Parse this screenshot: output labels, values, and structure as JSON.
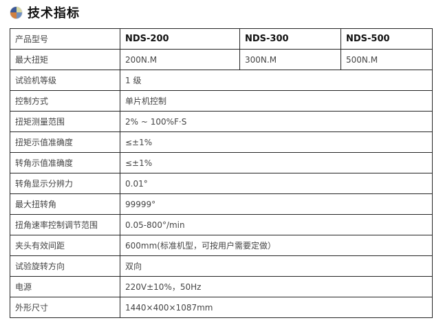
{
  "title": "技术指标",
  "icon_colors": [
    "#3b5998",
    "#d8d8a0",
    "#d08040",
    "#7090c0"
  ],
  "header": {
    "label": "产品型号",
    "models": [
      "NDS-200",
      "NDS-300",
      "NDS-500"
    ]
  },
  "torque_row": {
    "label": "最大扭矩",
    "values": [
      "200N.M",
      "300N.M",
      "500N.M"
    ]
  },
  "rows": [
    {
      "label": "试验机等级",
      "value": "1 级"
    },
    {
      "label": "控制方式",
      "value": "单片机控制"
    },
    {
      "label": "扭矩测量范围",
      "value": "2% ~ 100%F·S"
    },
    {
      "label": "扭矩示值准确度",
      "value": "≤±1%"
    },
    {
      "label": "转角示值准确度",
      "value": "≤±1%"
    },
    {
      "label": "转角显示分辨力",
      "value": "0.01°"
    },
    {
      "label": "最大扭转角",
      "value": "99999°"
    },
    {
      "label": "扭角速率控制调节范围",
      "value": "0.05-800°/min"
    },
    {
      "label": "夹头有效间距",
      "value": "600mm(标准机型，可按用户需要定做）"
    },
    {
      "label": "试验旋转方向",
      "value": "双向"
    },
    {
      "label": "电源",
      "value": "220V±10%，50Hz"
    },
    {
      "label": "外形尺寸",
      "value": "1440×400×1087mm"
    }
  ]
}
